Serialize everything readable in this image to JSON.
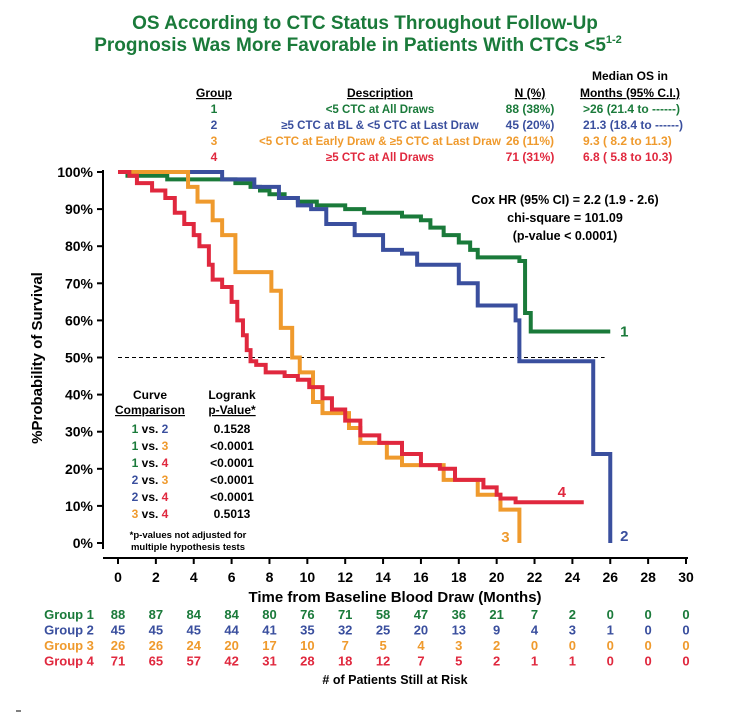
{
  "colors": {
    "group1": "#1a7a3a",
    "group2": "#3a4f9e",
    "group3": "#ef9a2d",
    "group4": "#e0283e",
    "axis": "#000000"
  },
  "title": {
    "line1": "OS According to CTC Status Throughout Follow-Up",
    "line2": "Prognosis Was More Favorable in Patients With CTCs <5",
    "line2_sup": "1-2"
  },
  "group_table": {
    "headers": {
      "group": "Group",
      "description": "Description",
      "n": "N (%)",
      "median_line1": "Median OS in",
      "median_line2": "Months (95% C.I.)"
    },
    "rows": [
      {
        "group": "1",
        "description": "<5 CTC at All Draws",
        "n": "88 (38%)",
        "median": ">26  (21.4 to ------)"
      },
      {
        "group": "2",
        "description": "≥5 CTC at BL & <5 CTC at Last Draw",
        "n": "45 (20%)",
        "median": "21.3  (18.4 to ------)"
      },
      {
        "group": "3",
        "description": "<5 CTC at Early Draw & ≥5 CTC at Last Draw",
        "n": "26 (11%)",
        "median": "9.3  ( 8.2 to 11.3)"
      },
      {
        "group": "4",
        "description": "≥5 CTC at All Draws",
        "n": "71 (31%)",
        "median": "6.8  ( 5.8 to 10.3)"
      }
    ]
  },
  "cox": {
    "line1": "Cox HR (95% CI) = 2.2 (1.9 - 2.6)",
    "line2": "chi-square = 101.09",
    "line3": "(p-value < 0.0001)"
  },
  "logrank_table": {
    "header_curve_1": "Curve",
    "header_curve_2": "Comparison",
    "header_p_1": "Logrank",
    "header_p_2": "p-Value*",
    "rows": [
      {
        "a": "1",
        "b": "2",
        "p": "0.1528"
      },
      {
        "a": "1",
        "b": "3",
        "p": "<0.0001"
      },
      {
        "a": "1",
        "b": "4",
        "p": "<0.0001"
      },
      {
        "a": "2",
        "b": "3",
        "p": "<0.0001"
      },
      {
        "a": "2",
        "b": "4",
        "p": "<0.0001"
      },
      {
        "a": "3",
        "b": "4",
        "p": "0.5013"
      }
    ],
    "vs": "vs.",
    "footnote1": "*p-values not adjusted for",
    "footnote2": "multiple hypothesis tests"
  },
  "risk_table": {
    "label": "# of Patients Still at Risk",
    "rows": [
      {
        "name": "Group 1",
        "values": [
          88,
          87,
          84,
          84,
          80,
          76,
          71,
          58,
          47,
          36,
          21,
          7,
          2,
          0,
          0,
          0
        ]
      },
      {
        "name": "Group 2",
        "values": [
          45,
          45,
          45,
          44,
          41,
          35,
          32,
          25,
          20,
          13,
          9,
          4,
          3,
          1,
          0,
          0
        ]
      },
      {
        "name": "Group 3",
        "values": [
          26,
          26,
          24,
          20,
          17,
          10,
          7,
          5,
          4,
          3,
          2,
          0,
          0,
          0,
          0,
          0
        ]
      },
      {
        "name": "Group 4",
        "values": [
          71,
          65,
          57,
          42,
          31,
          28,
          18,
          12,
          7,
          5,
          2,
          1,
          1,
          0,
          0,
          0
        ]
      }
    ]
  },
  "chart_data": {
    "type": "line",
    "title": "",
    "xlabel": "Time from Baseline Blood Draw (Months)",
    "ylabel": "%Probability of Survival",
    "xlim": [
      0,
      30
    ],
    "ylim": [
      0,
      100
    ],
    "xticks": [
      0,
      2,
      4,
      6,
      8,
      10,
      12,
      14,
      16,
      18,
      20,
      22,
      24,
      26,
      28,
      30
    ],
    "yticks": [
      0,
      10,
      20,
      30,
      40,
      50,
      60,
      70,
      80,
      90,
      100
    ],
    "ytick_labels": [
      "0%",
      "10%",
      "20%",
      "30%",
      "40%",
      "50%",
      "60%",
      "70%",
      "80%",
      "90%",
      "100%"
    ],
    "reference_line": 50,
    "step": true,
    "series": [
      {
        "name": "1",
        "color_key": "group1",
        "end_label": "1",
        "points": [
          [
            0,
            100
          ],
          [
            0.5,
            99
          ],
          [
            2.5,
            99
          ],
          [
            2.6,
            98
          ],
          [
            6,
            98
          ],
          [
            6.2,
            97
          ],
          [
            7,
            96
          ],
          [
            7.5,
            95
          ],
          [
            8,
            94
          ],
          [
            8.8,
            93
          ],
          [
            9.5,
            92
          ],
          [
            10.5,
            91
          ],
          [
            12,
            90
          ],
          [
            13,
            89
          ],
          [
            15,
            88
          ],
          [
            16,
            87
          ],
          [
            16.5,
            85
          ],
          [
            17.2,
            83
          ],
          [
            18,
            81
          ],
          [
            18.6,
            79
          ],
          [
            19,
            77
          ],
          [
            21.2,
            76
          ],
          [
            21.5,
            62
          ],
          [
            21.8,
            57
          ],
          [
            26,
            57
          ]
        ]
      },
      {
        "name": "2",
        "color_key": "group2",
        "end_label": "2",
        "points": [
          [
            0,
            100
          ],
          [
            5.5,
            98
          ],
          [
            7.2,
            96
          ],
          [
            8.5,
            93
          ],
          [
            9.5,
            91
          ],
          [
            10.2,
            90
          ],
          [
            11,
            86
          ],
          [
            12.5,
            83
          ],
          [
            14,
            79
          ],
          [
            15,
            78
          ],
          [
            15.8,
            75
          ],
          [
            18,
            70
          ],
          [
            19,
            64
          ],
          [
            21,
            60
          ],
          [
            21.2,
            49
          ],
          [
            25,
            49
          ],
          [
            25.1,
            24
          ],
          [
            26,
            24
          ],
          [
            26,
            0
          ]
        ]
      },
      {
        "name": "3",
        "color_key": "group3",
        "end_label": "3",
        "points": [
          [
            0,
            100
          ],
          [
            3.5,
            100
          ],
          [
            3.7,
            96
          ],
          [
            4.2,
            92
          ],
          [
            5,
            87
          ],
          [
            5.5,
            83
          ],
          [
            6.2,
            73
          ],
          [
            7.8,
            73
          ],
          [
            8.1,
            68
          ],
          [
            8.6,
            58
          ],
          [
            9.2,
            50
          ],
          [
            9.6,
            46
          ],
          [
            10.3,
            38
          ],
          [
            10.8,
            35
          ],
          [
            12.2,
            31
          ],
          [
            12.8,
            27
          ],
          [
            14.2,
            23
          ],
          [
            15,
            21
          ],
          [
            17.2,
            17
          ],
          [
            19,
            13
          ],
          [
            20.2,
            9
          ],
          [
            21.2,
            7
          ],
          [
            21.2,
            0
          ]
        ]
      },
      {
        "name": "4",
        "color_key": "group4",
        "end_label": "4",
        "points": [
          [
            0,
            100
          ],
          [
            0.6,
            99
          ],
          [
            1,
            97
          ],
          [
            1.8,
            95
          ],
          [
            2.5,
            93
          ],
          [
            3,
            89
          ],
          [
            3.5,
            86
          ],
          [
            4,
            83
          ],
          [
            4.3,
            80
          ],
          [
            4.8,
            75
          ],
          [
            5,
            71
          ],
          [
            5.5,
            69
          ],
          [
            6,
            65
          ],
          [
            6.3,
            60
          ],
          [
            6.6,
            56
          ],
          [
            6.8,
            52
          ],
          [
            7,
            49
          ],
          [
            7.3,
            48
          ],
          [
            7.8,
            46
          ],
          [
            8.8,
            45
          ],
          [
            9.5,
            44
          ],
          [
            10.1,
            42
          ],
          [
            10.8,
            39
          ],
          [
            11.3,
            36
          ],
          [
            12,
            33
          ],
          [
            12.8,
            29
          ],
          [
            13.8,
            27
          ],
          [
            15,
            24
          ],
          [
            16,
            21
          ],
          [
            17,
            20
          ],
          [
            17.8,
            17
          ],
          [
            19.3,
            15
          ],
          [
            20,
            13
          ],
          [
            20.2,
            12
          ],
          [
            21,
            11
          ],
          [
            24.6,
            11
          ]
        ]
      }
    ]
  }
}
